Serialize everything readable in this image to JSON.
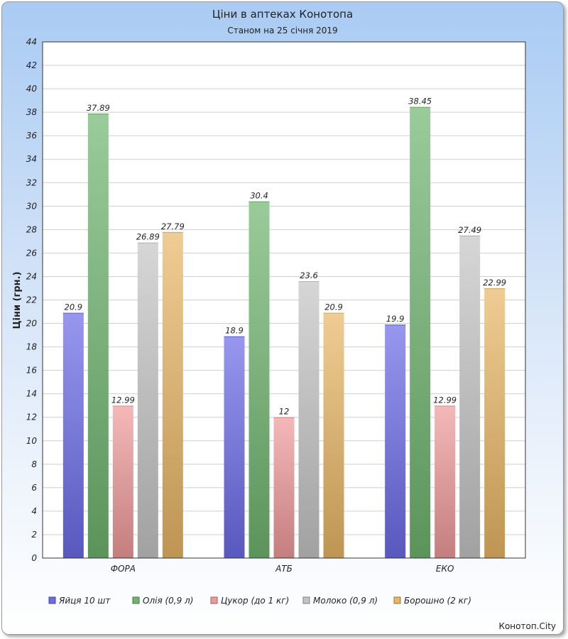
{
  "chart_data": {
    "type": "bar",
    "title": "Ціни в аптеках Конотопа",
    "subtitle": "Станом на 25 січня 2019",
    "ylabel": "Ціни (грн.)",
    "xlabel": "",
    "ylim": [
      0,
      44
    ],
    "ytick_step": 2,
    "grid": true,
    "legend_position": "bottom",
    "categories": [
      "ФОРА",
      "АТБ",
      "ЕКО"
    ],
    "series": [
      {
        "name": "Яйця 10 шт",
        "color": "#6b6be8",
        "values": [
          20.9,
          18.9,
          19.9
        ],
        "labels": [
          "20.9",
          "18.9",
          "19.9"
        ]
      },
      {
        "name": "Олія (0,9 л)",
        "color": "#6fb56f",
        "values": [
          37.89,
          30.4,
          38.45
        ],
        "labels": [
          "37.89",
          "30.4",
          "38.45"
        ]
      },
      {
        "name": "Цукор (до 1 кг)",
        "color": "#ef9a9a",
        "values": [
          12.99,
          12,
          12.99
        ],
        "labels": [
          "12.99",
          "12",
          "12.99"
        ]
      },
      {
        "name": "Молоко (0,9 л)",
        "color": "#c4c4c4",
        "values": [
          26.89,
          23.6,
          27.49
        ],
        "labels": [
          "26.89",
          "23.6",
          "27.49"
        ]
      },
      {
        "name": "Борошно (2 кг)",
        "color": "#e8b665",
        "values": [
          27.79,
          20.9,
          22.99
        ],
        "labels": [
          "27.79",
          "20.9",
          "22.99"
        ]
      }
    ]
  },
  "credit": "Конотоп.City"
}
